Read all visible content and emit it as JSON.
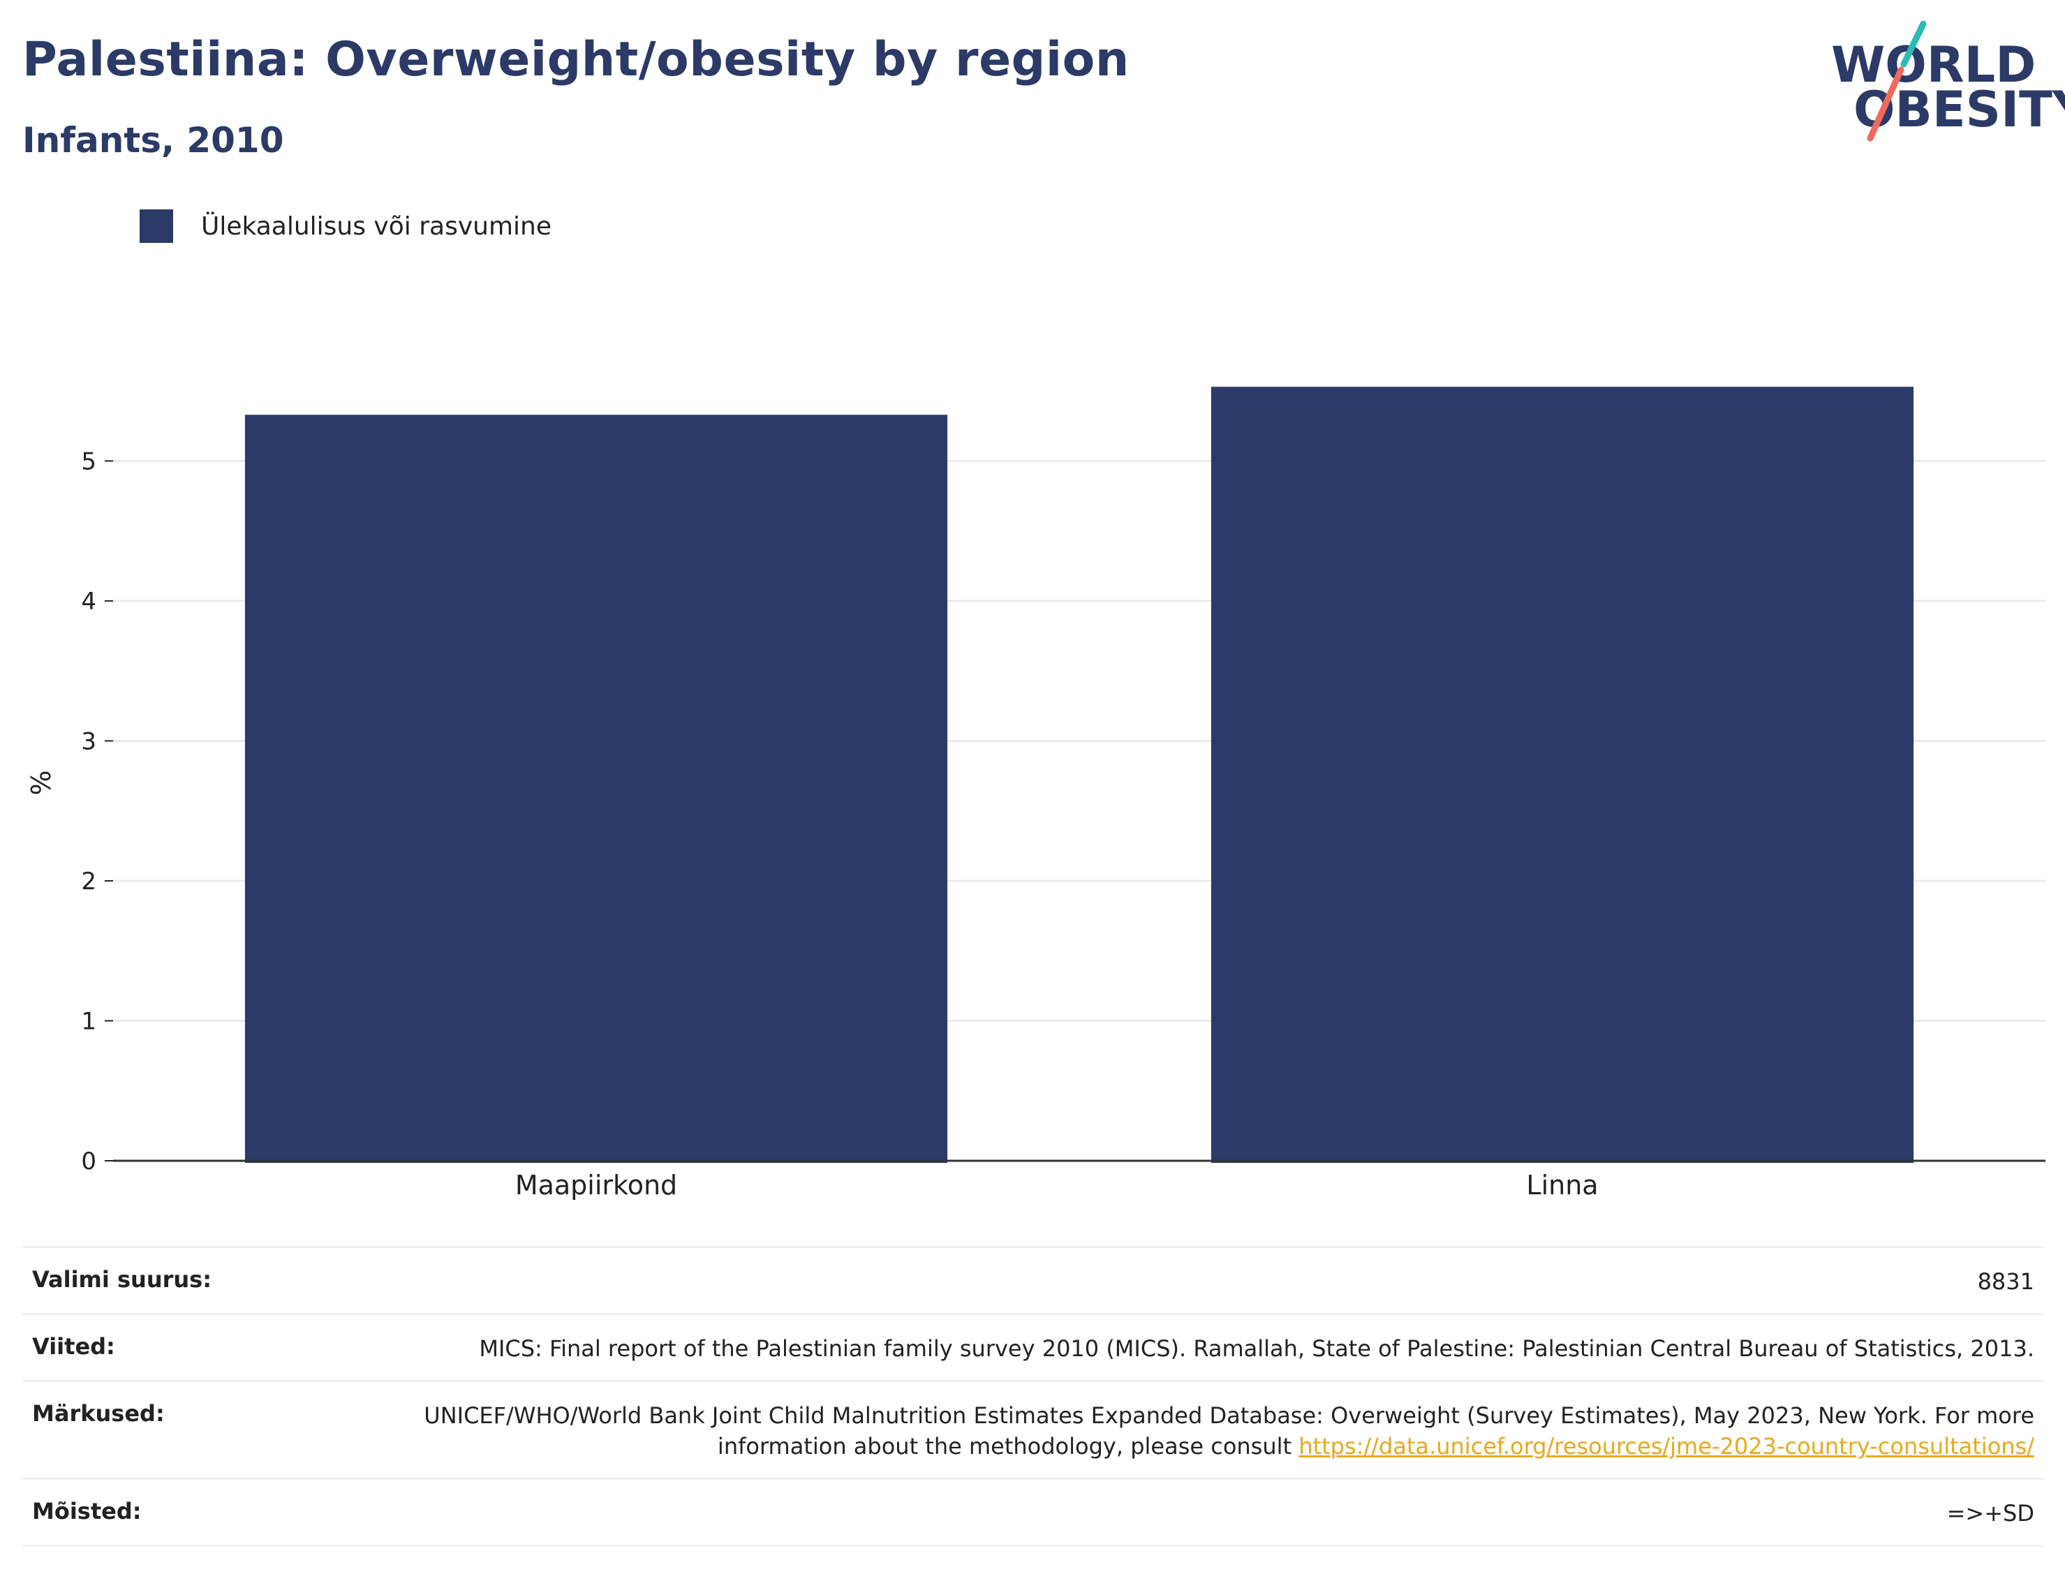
{
  "header": {
    "title": "Palestiina: Overweight/obesity by region",
    "subtitle": "Infants, 2010"
  },
  "logo": {
    "line1": "WORLD",
    "line2": "OBESITY",
    "colors": {
      "navy": "#2b3a67",
      "teal": "#2bbbb0",
      "coral": "#ef6a5a"
    }
  },
  "chart_data": {
    "type": "bar",
    "categories": [
      "Maapiirkond",
      "Linna"
    ],
    "series": [
      {
        "name": "Ülekaalulisus või rasvumine",
        "values": [
          5.33,
          5.53
        ],
        "color": "#2b3a67"
      }
    ],
    "ylabel": "%",
    "xlabel": "",
    "ylim": [
      0,
      5.8
    ],
    "yticks": [
      0,
      1,
      2,
      3,
      4,
      5
    ],
    "grid": true,
    "legend_position": "top-left"
  },
  "info_table": {
    "rows": [
      {
        "label": "Valimi suurus:",
        "value": "8831"
      },
      {
        "label": "Viited:",
        "value": "MICS: Final report of the Palestinian family survey 2010 (MICS). Ramallah, State of Palestine: Palestinian Central Bureau of Statistics, 2013."
      },
      {
        "label": "Märkused:",
        "value": "UNICEF/WHO/World Bank Joint Child Malnutrition Estimates Expanded Database: Overweight (Survey Estimates), May 2023, New York. For more information about the methodology, please consult ",
        "link": "https://data.unicef.org/resources/jme-2023-country-consultations/"
      },
      {
        "label": "Mõisted:",
        "value": "=>+SD"
      }
    ]
  }
}
